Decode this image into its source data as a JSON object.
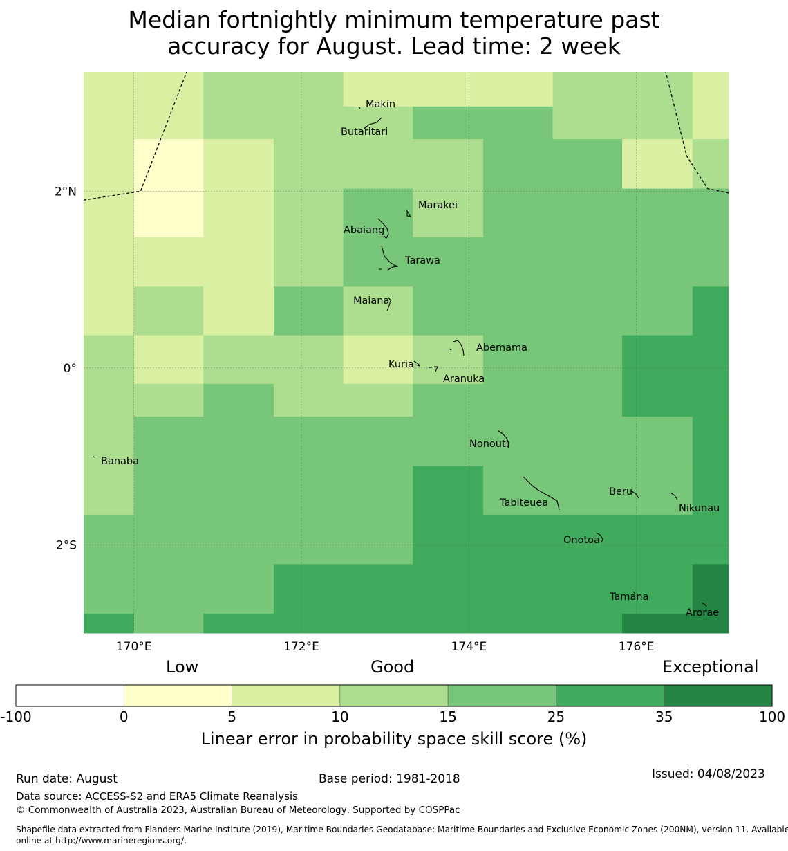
{
  "title": {
    "line1": "Median fortnightly minimum temperature past",
    "line2": "accuracy for August. Lead time: 2 week"
  },
  "map": {
    "extent": {
      "lon": [
        169.4,
        177.1
      ],
      "lat": [
        -3.0,
        3.35
      ]
    },
    "lon_ticks": [
      {
        "value": 170,
        "label": "170°E"
      },
      {
        "value": 172,
        "label": "172°E"
      },
      {
        "value": 174,
        "label": "174°E"
      },
      {
        "value": 176,
        "label": "176°E"
      }
    ],
    "lat_ticks": [
      {
        "value": 2,
        "label": "2°N"
      },
      {
        "value": 0,
        "label": "0°"
      },
      {
        "value": -2,
        "label": "2°S"
      }
    ],
    "grid": true,
    "palette": [
      "#ffffff",
      "#ffffcc",
      "#d9f0a3",
      "#addd8e",
      "#78c679",
      "#41ab5d",
      "#238443"
    ],
    "cell_rows_note_levels": "0:<0, 1:0-5, 2:5-10, 3:10-15, 4:15-25, 5:25-35, 6:35-100",
    "lon_edges": [
      169.4,
      170.0,
      170.83,
      171.67,
      172.5,
      173.33,
      174.17,
      175.0,
      175.83,
      176.67,
      177.1
    ],
    "lat_edges": [
      3.35,
      2.96,
      2.03,
      1.48,
      0.92,
      0.37,
      -0.18,
      -0.55,
      -1.66,
      -2.22,
      -2.78,
      -3.0
    ],
    "cells": [
      [
        2,
        2,
        3,
        3,
        2,
        2,
        2,
        3,
        3,
        2
      ],
      [
        2,
        2,
        3,
        3,
        3,
        4,
        4,
        3,
        3,
        2
      ],
      [
        2,
        1,
        2,
        3,
        3,
        3,
        4,
        4,
        2,
        3
      ],
      [
        2,
        1,
        2,
        3,
        4,
        3,
        4,
        4,
        4,
        4
      ],
      [
        2,
        2,
        2,
        3,
        4,
        4,
        4,
        4,
        4,
        4
      ],
      [
        2,
        3,
        2,
        4,
        3,
        4,
        4,
        4,
        4,
        5
      ],
      [
        3,
        2,
        3,
        3,
        2,
        3,
        4,
        4,
        5,
        5
      ],
      [
        3,
        3,
        4,
        3,
        3,
        4,
        4,
        4,
        5,
        5
      ],
      [
        3,
        4,
        4,
        4,
        4,
        4,
        4,
        4,
        4,
        5
      ],
      [
        3,
        4,
        4,
        4,
        4,
        5,
        4,
        4,
        4,
        5
      ],
      [
        4,
        4,
        4,
        4,
        4,
        5,
        5,
        5,
        5,
        5
      ],
      [
        4,
        4,
        4,
        5,
        5,
        5,
        5,
        5,
        5,
        6
      ],
      [
        5,
        4,
        5,
        5,
        5,
        5,
        5,
        5,
        6,
        6
      ]
    ],
    "cell_lat_edges": [
      3.35,
      2.96,
      2.59,
      2.03,
      1.48,
      0.92,
      0.37,
      -0.18,
      -0.55,
      -1.11,
      -1.66,
      -2.22,
      -2.78,
      -3.0
    ],
    "boundaries": [
      [
        [
          169.4,
          1.9
        ],
        [
          170.08,
          2.0
        ],
        [
          170.63,
          3.35
        ]
      ],
      [
        [
          177.1,
          1.98
        ],
        [
          176.85,
          2.03
        ],
        [
          176.6,
          2.4
        ],
        [
          176.35,
          3.35
        ]
      ]
    ],
    "places": [
      {
        "name": "Makin",
        "lon": 172.97,
        "lat": 3.13
      },
      {
        "name": "Butaritari",
        "lon": 172.77,
        "lat": 3.07
      },
      {
        "name": "Marakei",
        "lon": 173.28,
        "lat": 2.0
      },
      {
        "name": "Abaiang",
        "lon": 172.98,
        "lat": 1.85
      },
      {
        "name": "Tarawa",
        "lon": 173.1,
        "lat": 1.45
      },
      {
        "name": "Maiana",
        "lon": 173.03,
        "lat": 0.92
      },
      {
        "name": "Abemama",
        "lon": 173.87,
        "lat": 0.42
      },
      {
        "name": "Kuria",
        "lon": 173.42,
        "lat": 0.23
      },
      {
        "name": "Aranuka",
        "lon": 173.63,
        "lat": 0.18
      },
      {
        "name": "Nonouti",
        "lon": 174.43,
        "lat": -0.68
      },
      {
        "name": "Banaba",
        "lon": 169.53,
        "lat": -0.88
      },
      {
        "name": "Beru",
        "lon": 176.0,
        "lat": -1.33
      },
      {
        "name": "Tabiteuea",
        "lon": 174.95,
        "lat": -1.43
      },
      {
        "name": "Nikunau",
        "lon": 176.45,
        "lat": -1.37
      },
      {
        "name": "Onotoa",
        "lon": 175.57,
        "lat": -1.83
      },
      {
        "name": "Tamana",
        "lon": 175.98,
        "lat": -2.5
      },
      {
        "name": "Arorae",
        "lon": 176.82,
        "lat": -2.65
      }
    ]
  },
  "colorbar": {
    "category_labels": [
      "Low",
      "Good",
      "Exceptional"
    ],
    "bounds": [
      "-100",
      "0",
      "5",
      "10",
      "15",
      "25",
      "35",
      "100"
    ],
    "colors": [
      "#ffffff",
      "#ffffcc",
      "#d9f0a3",
      "#addd8e",
      "#78c679",
      "#41ab5d",
      "#238443"
    ],
    "title": "Linear error in probability space skill score (%)"
  },
  "footer": {
    "run_date": "Run date: August",
    "base_period": "Base period: 1981-2018",
    "issued": "Issued: 04/08/2023",
    "data_source": "Data source: ACCESS-S2 and ERA5 Climate Reanalysis",
    "copyright": "© Commonwealth of Australia 2023, Australian Bureau of Meteorology, Supported by COSPPac",
    "shapefile_line1": "Shapefile data extracted from Flanders Marine Institute (2019), Maritime Boundaries Geodatabase: Maritime Boundaries and Exclusive Economic Zones (200NM), version 11. Available",
    "shapefile_line2": "online at http://www.marineregions.org/."
  }
}
